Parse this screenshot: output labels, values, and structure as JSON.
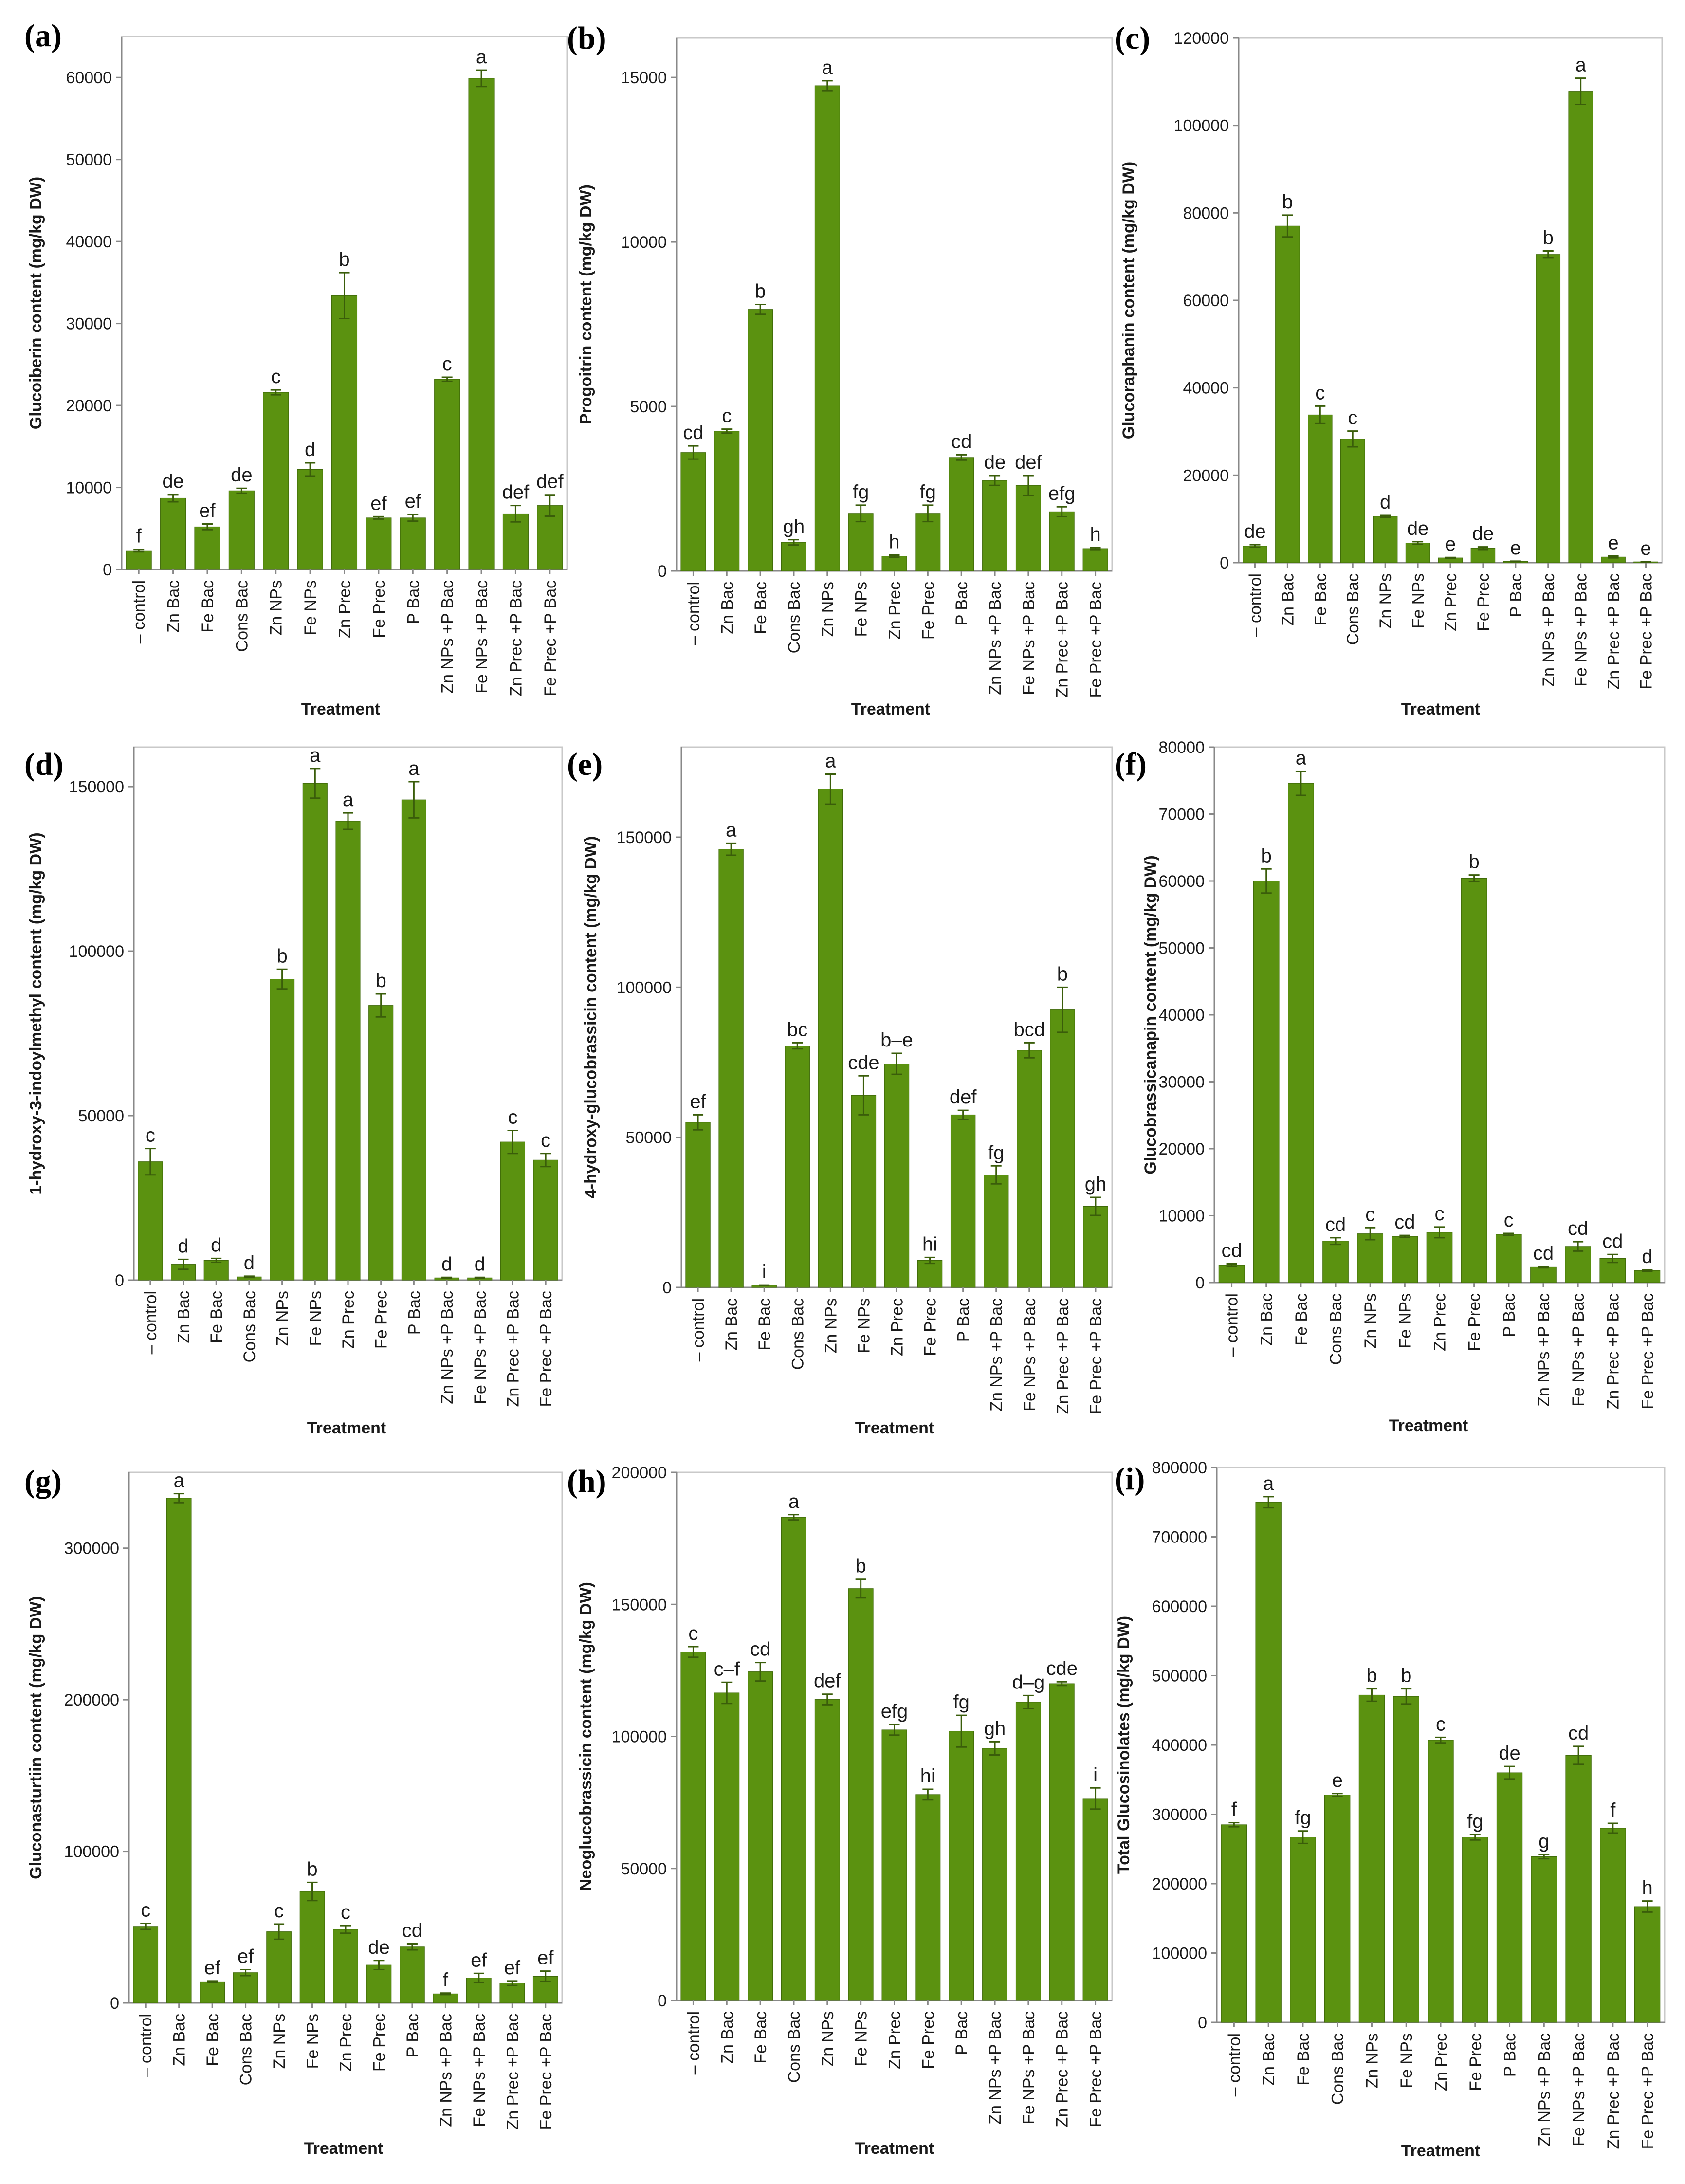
{
  "colors": {
    "bar": "#5b9210",
    "bar_edge": "#3f6a08",
    "err": "#3a5d0a",
    "axis": "#888888",
    "frame": "#c9c9c9",
    "text": "#1a1a1a"
  },
  "chart_data": [
    {
      "id": "a",
      "panel_label": "(a)",
      "type": "bar",
      "ylabel": "Glucoiberin content (mg/kg DW)",
      "xlabel": "Treatment",
      "ylim": [
        0,
        65000
      ],
      "yticks": [
        0,
        10000,
        20000,
        30000,
        40000,
        50000,
        60000
      ],
      "categories": [
        "– control",
        "Zn Bac",
        "Fe Bac",
        "Cons Bac",
        "Zn NPs",
        "Fe NPs",
        "Zn Prec",
        "Fe Prec",
        "P Bac",
        "Zn NPs +P Bac",
        "Fe NPs +P Bac",
        "Zn Prec +P Bac",
        "Fe Prec +P Bac"
      ],
      "values": [
        2300,
        8700,
        5200,
        9600,
        21600,
        12200,
        33400,
        6300,
        6300,
        23200,
        59900,
        6800,
        7800
      ],
      "errors": [
        150,
        450,
        350,
        300,
        300,
        800,
        2800,
        150,
        400,
        250,
        1000,
        1000,
        1300
      ],
      "letters": [
        "f",
        "de",
        "ef",
        "de",
        "c",
        "d",
        "b",
        "ef",
        "ef",
        "c",
        "a",
        "def",
        "def"
      ]
    },
    {
      "id": "b",
      "panel_label": "(b)",
      "type": "bar",
      "ylabel": "Progoitrin content (mg/kg DW)",
      "xlabel": "Treatment",
      "ylim": [
        0,
        16200
      ],
      "yticks": [
        0,
        5000,
        10000,
        15000
      ],
      "categories": [
        "– control",
        "Zn Bac",
        "Fe Bac",
        "Cons Bac",
        "Zn NPs",
        "Fe NPs",
        "Zn Prec",
        "Fe Prec",
        "P Bac",
        "Zn NPs +P Bac",
        "Fe NPs +P Bac",
        "Zn Prec +P Bac",
        "Fe Prec +P Bac"
      ],
      "values": [
        3600,
        4250,
        7950,
        870,
        14750,
        1750,
        450,
        1750,
        3450,
        2750,
        2600,
        1800,
        680
      ],
      "errors": [
        200,
        60,
        150,
        80,
        150,
        250,
        30,
        250,
        80,
        150,
        300,
        150,
        30
      ],
      "letters": [
        "cd",
        "c",
        "b",
        "gh",
        "a",
        "fg",
        "h",
        "fg",
        "cd",
        "de",
        "def",
        "efg",
        "h"
      ]
    },
    {
      "id": "c",
      "panel_label": "(c)",
      "type": "bar",
      "ylabel": "Glucoraphanin content (mg/kg DW)",
      "xlabel": "Treatment",
      "ylim": [
        0,
        120000
      ],
      "yticks": [
        0,
        20000,
        40000,
        60000,
        80000,
        100000,
        120000
      ],
      "categories": [
        "– control",
        "Zn Bac",
        "Fe Bac",
        "Cons Bac",
        "Zn NPs",
        "Fe NPs",
        "Zn Prec",
        "Fe Prec",
        "P Bac",
        "Zn NPs +P Bac",
        "Fe NPs +P Bac",
        "Zn Prec +P Bac",
        "Fe Prec +P Bac"
      ],
      "values": [
        3800,
        77000,
        33800,
        28300,
        10600,
        4500,
        1100,
        3300,
        300,
        70500,
        107800,
        1300,
        200
      ],
      "errors": [
        300,
        2500,
        2000,
        1800,
        200,
        300,
        100,
        300,
        50,
        800,
        3000,
        200,
        50
      ],
      "letters": [
        "de",
        "b",
        "c",
        "c",
        "d",
        "de",
        "e",
        "de",
        "e",
        "b",
        "a",
        "e",
        "e"
      ]
    },
    {
      "id": "d",
      "panel_label": "(d)",
      "type": "bar",
      "ylabel": "1-hydroxy-3-indoylmethyl content (mg/kg DW)",
      "xlabel": "Treatment",
      "ylim": [
        0,
        162000
      ],
      "yticks": [
        0,
        50000,
        100000,
        150000
      ],
      "categories": [
        "– control",
        "Zn Bac",
        "Fe Bac",
        "Cons Bac",
        "Zn NPs",
        "Fe NPs",
        "Zn Prec",
        "Fe Prec",
        "P Bac",
        "Zn NPs +P Bac",
        "Fe NPs +P Bac",
        "Zn Prec +P Bac",
        "Fe Prec +P Bac"
      ],
      "values": [
        36000,
        4800,
        6000,
        1000,
        91500,
        151000,
        139500,
        83500,
        146000,
        700,
        700,
        42000,
        36500
      ],
      "errors": [
        4000,
        1500,
        600,
        200,
        3000,
        4500,
        2500,
        3500,
        5500,
        150,
        150,
        3500,
        2000
      ],
      "letters": [
        "c",
        "d",
        "d",
        "d",
        "b",
        "a",
        "a",
        "b",
        "a",
        "d",
        "d",
        "c",
        "c"
      ]
    },
    {
      "id": "e",
      "panel_label": "(e)",
      "type": "bar",
      "ylabel": "4-hydroxy-glucobrassicin content (mg/kg DW)",
      "xlabel": "Treatment",
      "ylim": [
        0,
        180000
      ],
      "yticks": [
        0,
        50000,
        100000,
        150000
      ],
      "categories": [
        "– control",
        "Zn Bac",
        "Fe Bac",
        "Cons Bac",
        "Zn NPs",
        "Fe NPs",
        "Zn Prec",
        "Fe Prec",
        "P Bac",
        "Zn NPs +P Bac",
        "Fe NPs +P Bac",
        "Zn Prec +P Bac",
        "Fe Prec +P Bac"
      ],
      "values": [
        55000,
        146000,
        700,
        80500,
        166000,
        64000,
        74500,
        9000,
        57500,
        37500,
        79000,
        92500,
        27000
      ],
      "errors": [
        2500,
        2000,
        100,
        1000,
        5000,
        6500,
        3500,
        1000,
        1500,
        3000,
        2500,
        7500,
        3000
      ],
      "letters": [
        "ef",
        "a",
        "i",
        "bc",
        "a",
        "cde",
        "b–e",
        "hi",
        "def",
        "fg",
        "bcd",
        "b",
        "gh"
      ]
    },
    {
      "id": "f",
      "panel_label": "(f)",
      "type": "bar",
      "ylabel": "Glucobrassicanapin content (mg/kg DW)",
      "xlabel": "Treatment",
      "ylim": [
        0,
        80000
      ],
      "yticks": [
        0,
        10000,
        20000,
        30000,
        40000,
        50000,
        60000,
        70000,
        80000
      ],
      "categories": [
        "– control",
        "Zn Bac",
        "Fe Bac",
        "Cons Bac",
        "Zn NPs",
        "Fe NPs",
        "Zn Prec",
        "Fe Prec",
        "P Bac",
        "Zn NPs +P Bac",
        "Fe NPs +P Bac",
        "Zn Prec +P Bac",
        "Fe Prec +P Bac"
      ],
      "values": [
        2600,
        60000,
        74600,
        6200,
        7300,
        6900,
        7500,
        60400,
        7200,
        2300,
        5400,
        3600,
        1800
      ],
      "errors": [
        200,
        1800,
        1800,
        500,
        900,
        150,
        800,
        500,
        150,
        100,
        700,
        600,
        100
      ],
      "letters": [
        "cd",
        "b",
        "a",
        "cd",
        "c",
        "cd",
        "c",
        "b",
        "c",
        "cd",
        "cd",
        "cd",
        "d"
      ]
    },
    {
      "id": "g",
      "panel_label": "(g)",
      "type": "bar",
      "ylabel": "Gluconasturtiin content (mg/kg DW)",
      "xlabel": "Treatment",
      "ylim": [
        0,
        350000
      ],
      "yticks": [
        0,
        100000,
        200000,
        300000
      ],
      "categories": [
        "– control",
        "Zn Bac",
        "Fe Bac",
        "Cons Bac",
        "Zn NPs",
        "Fe NPs",
        "Zn Prec",
        "Fe Prec",
        "P Bac",
        "Zn NPs +P Bac",
        "Fe NPs +P Bac",
        "Zn Prec +P Bac",
        "Fe Prec +P Bac"
      ],
      "values": [
        50500,
        333000,
        14000,
        20000,
        47000,
        73500,
        48500,
        25000,
        37000,
        6000,
        16500,
        13000,
        17500
      ],
      "errors": [
        2000,
        3000,
        500,
        2000,
        5000,
        6000,
        2500,
        3000,
        2000,
        500,
        3000,
        1500,
        3500
      ],
      "letters": [
        "c",
        "a",
        "ef",
        "ef",
        "c",
        "b",
        "c",
        "de",
        "cd",
        "f",
        "ef",
        "ef",
        "ef"
      ]
    },
    {
      "id": "h",
      "panel_label": "(h)",
      "type": "bar",
      "ylabel": "Neoglucobrassicin content (mg/kg DW)",
      "xlabel": "Treatment",
      "ylim": [
        0,
        200000
      ],
      "yticks": [
        0,
        50000,
        100000,
        150000,
        200000
      ],
      "categories": [
        "– control",
        "Zn Bac",
        "Fe Bac",
        "Cons Bac",
        "Zn NPs",
        "Fe NPs",
        "Zn Prec",
        "Fe Prec",
        "P Bac",
        "Zn NPs +P Bac",
        "Fe NPs +P Bac",
        "Zn Prec +P Bac",
        "Fe Prec +P Bac"
      ],
      "values": [
        132000,
        116500,
        124500,
        183000,
        114000,
        156000,
        102500,
        78000,
        102000,
        95500,
        113000,
        120000,
        76500
      ],
      "errors": [
        2000,
        4000,
        3500,
        1000,
        2000,
        3500,
        2000,
        2000,
        6000,
        2500,
        2500,
        700,
        4000
      ],
      "letters": [
        "c",
        "c–f",
        "cd",
        "a",
        "def",
        "b",
        "efg",
        "hi",
        "fg",
        "gh",
        "d–g",
        "cde",
        "i"
      ]
    },
    {
      "id": "i",
      "panel_label": "(i)",
      "type": "bar",
      "ylabel": "Total Glucosinolates (mg/kg DW)",
      "xlabel": "Treatment",
      "ylim": [
        0,
        800000
      ],
      "yticks": [
        0,
        100000,
        200000,
        300000,
        400000,
        500000,
        600000,
        700000,
        800000
      ],
      "categories": [
        "– control",
        "Zn Bac",
        "Fe Bac",
        "Cons Bac",
        "Zn NPs",
        "Fe NPs",
        "Zn Prec",
        "Fe Prec",
        "P Bac",
        "Zn NPs +P Bac",
        "Fe NPs +P Bac",
        "Zn Prec +P Bac",
        "Fe Prec +P Bac"
      ],
      "values": [
        285000,
        750000,
        267000,
        328000,
        472000,
        470000,
        407000,
        267000,
        360000,
        239000,
        385000,
        280000,
        167000
      ],
      "errors": [
        3000,
        8000,
        9000,
        2000,
        9000,
        11000,
        4000,
        4000,
        9000,
        3000,
        13000,
        7000,
        8000
      ],
      "letters": [
        "f",
        "a",
        "fg",
        "e",
        "b",
        "b",
        "c",
        "fg",
        "de",
        "g",
        "cd",
        "f",
        "h"
      ]
    }
  ]
}
